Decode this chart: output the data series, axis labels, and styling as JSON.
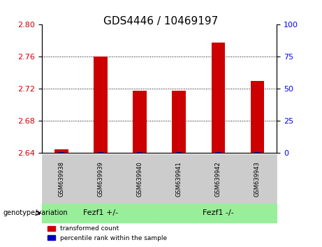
{
  "title": "GDS4446 / 10469197",
  "samples": [
    "GSM639938",
    "GSM639939",
    "GSM639940",
    "GSM639941",
    "GSM639942",
    "GSM639943"
  ],
  "transformed_counts": [
    2.645,
    2.76,
    2.718,
    2.718,
    2.778,
    2.73
  ],
  "percentile_ranks": [
    1,
    1,
    1,
    1,
    1,
    1
  ],
  "ylim_left": [
    2.64,
    2.8
  ],
  "ylim_right": [
    0,
    100
  ],
  "yticks_left": [
    2.64,
    2.68,
    2.72,
    2.76,
    2.8
  ],
  "yticks_right": [
    0,
    25,
    50,
    75,
    100
  ],
  "bar_color_red": "#cc0000",
  "bar_color_blue": "#0000cc",
  "group1_label": "Fezf1 +/-",
  "group2_label": "Fezf1 -/-",
  "group1_indices": [
    0,
    1,
    2
  ],
  "group2_indices": [
    3,
    4,
    5
  ],
  "group_bg_color": "#99ee99",
  "sample_bg_color": "#cccccc",
  "legend_red_label": "transformed count",
  "legend_blue_label": "percentile rank within the sample",
  "genotype_label": "genotype/variation"
}
